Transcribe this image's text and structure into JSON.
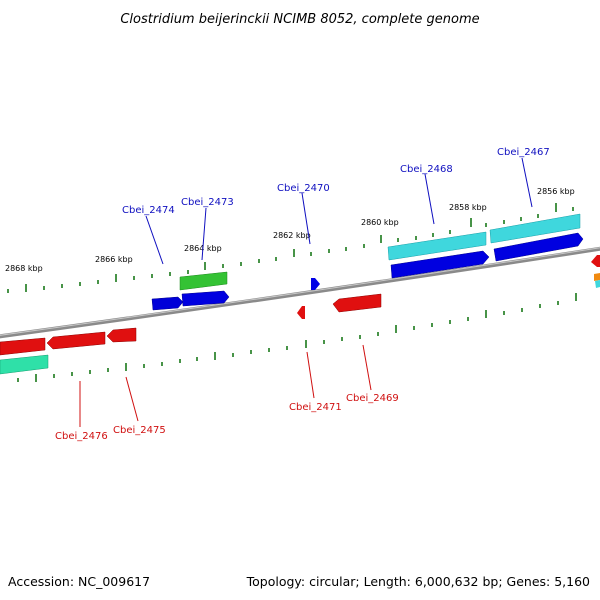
{
  "title": "Clostridium beijerinckii NCIMB 8052, complete genome",
  "footer": {
    "accession": "Accession: NC_009617",
    "summary": "Topology: circular; Length: 6,000,632 bp; Genes: 5,160"
  },
  "colors": {
    "backbone": "#8a8a8a",
    "tick": "#1a7a1a",
    "forward_label": "#1010c0",
    "reverse_label": "#d01010"
  },
  "scale_labels": [
    "2868 kbp",
    "2866 kbp",
    "2864 kbp",
    "2862 kbp",
    "2860 kbp",
    "2858 kbp",
    "2856 kbp"
  ],
  "gene_labels": {
    "forward": [
      "Cbei_2474",
      "Cbei_2473",
      "Cbei_2470",
      "Cbei_2468",
      "Cbei_2467"
    ],
    "reverse": [
      "Cbei_2476",
      "Cbei_2475",
      "Cbei_2471",
      "Cbei_2469"
    ]
  },
  "gene_features": [
    {
      "name": "feature-cbei-2474",
      "strand": "forward",
      "color": "blue"
    },
    {
      "name": "feature-cbei-2473",
      "strand": "forward",
      "color": "blue"
    },
    {
      "name": "feature-cbei-2473-product",
      "strand": "forward",
      "color": "green"
    },
    {
      "name": "feature-cbei-2470",
      "strand": "forward",
      "color": "blue"
    },
    {
      "name": "feature-cbei-2468",
      "strand": "forward",
      "color": "blue"
    },
    {
      "name": "feature-cbei-2468-product",
      "strand": "forward",
      "color": "cyan"
    },
    {
      "name": "feature-cbei-2467",
      "strand": "forward",
      "color": "blue"
    },
    {
      "name": "feature-cbei-2467-product",
      "strand": "forward",
      "color": "cyan"
    },
    {
      "name": "feature-cbei-2476",
      "strand": "reverse",
      "color": "red"
    },
    {
      "name": "feature-cbei-2476-product",
      "strand": "reverse",
      "color": "teal"
    },
    {
      "name": "feature-cbei-2475",
      "strand": "reverse",
      "color": "red"
    },
    {
      "name": "feature-cbei-2471",
      "strand": "reverse",
      "color": "red"
    },
    {
      "name": "feature-cbei-2469",
      "strand": "reverse",
      "color": "red"
    }
  ]
}
